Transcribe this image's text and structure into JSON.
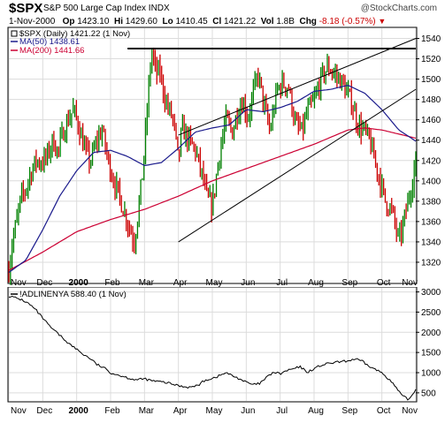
{
  "header": {
    "symbol": "$SPX",
    "name": "S&P 500 Large Cap Index INDX",
    "credit": "@StockCharts.com",
    "date": "1-Nov-2000",
    "open_label": "Op",
    "open": "1423.10",
    "high_label": "Hi",
    "high": "1429.60",
    "low_label": "Lo",
    "low": "1410.45",
    "close_label": "Cl",
    "close": "1421.22",
    "vol_label": "Vol",
    "vol": "1.8B",
    "chg_label": "Chg",
    "chg": "-8.18 (-0.57%)",
    "chg_icon": "down-triangle-icon",
    "chg_color": "#cc0000"
  },
  "chart_data": [
    {
      "type": "bar",
      "subtype": "ohlc",
      "title": "$SPX S&P 500 Large Cap Index INDX",
      "legend": [
        {
          "label": "$SPX (Daily) 1421.22 (1 Nov)",
          "color": "#000000"
        },
        {
          "label": "MA(50) 1438.61",
          "color": "#1a1a8c"
        },
        {
          "label": "MA(200) 1441.66",
          "color": "#cc0033"
        }
      ],
      "legend_placement": "top-left",
      "x_tick_labels": [
        "Nov",
        "Dec",
        "2000",
        "Feb",
        "Mar",
        "Apr",
        "May",
        "Jun",
        "Jul",
        "Aug",
        "Sep",
        "Oct",
        "Nov"
      ],
      "x_tick_positions": [
        0,
        1,
        2,
        3,
        4,
        5,
        6,
        7,
        8,
        9,
        10,
        11,
        12
      ],
      "y_ticks": [
        1320,
        1340,
        1360,
        1380,
        1400,
        1420,
        1440,
        1460,
        1480,
        1500,
        1520,
        1540
      ],
      "ylim": [
        1300,
        1550
      ],
      "xlim": [
        0,
        12
      ],
      "y_axis_side": "right",
      "grid": true,
      "close_series_t": [
        0,
        0.1,
        0.2,
        0.35,
        0.5,
        0.6,
        0.8,
        0.95,
        1.1,
        1.3,
        1.45,
        1.6,
        1.75,
        1.9,
        2.05,
        2.2,
        2.4,
        2.6,
        2.75,
        2.9,
        3.05,
        3.2,
        3.4,
        3.55,
        3.7,
        3.85,
        3.95,
        4.05,
        4.2,
        4.35,
        4.45,
        4.55,
        4.65,
        4.85,
        5.0,
        5.1,
        5.3,
        5.5,
        5.7,
        5.85,
        6.0,
        6.2,
        6.4,
        6.6,
        6.75,
        6.9,
        7.05,
        7.2,
        7.35,
        7.5,
        7.7,
        7.9,
        8.05,
        8.25,
        8.45,
        8.65,
        8.8,
        9.0,
        9.2,
        9.4,
        9.6,
        9.8,
        9.95,
        10.1,
        10.3,
        10.5,
        10.65,
        10.8,
        10.95,
        11.1,
        11.3,
        11.5,
        11.65,
        11.8,
        11.9,
        12.0
      ],
      "close_series_v": [
        1312,
        1340,
        1355,
        1382,
        1392,
        1404,
        1420,
        1418,
        1422,
        1440,
        1428,
        1448,
        1460,
        1470,
        1455,
        1435,
        1418,
        1440,
        1450,
        1424,
        1405,
        1390,
        1370,
        1355,
        1340,
        1380,
        1410,
        1455,
        1528,
        1505,
        1508,
        1490,
        1475,
        1460,
        1418,
        1452,
        1440,
        1430,
        1405,
        1382,
        1375,
        1425,
        1460,
        1448,
        1470,
        1478,
        1462,
        1485,
        1505,
        1478,
        1448,
        1488,
        1496,
        1492,
        1455,
        1448,
        1468,
        1478,
        1500,
        1512,
        1505,
        1498,
        1488,
        1478,
        1455,
        1448,
        1438,
        1418,
        1400,
        1380,
        1370,
        1340,
        1360,
        1385,
        1400,
        1421
      ],
      "ma50": {
        "t": [
          0,
          0.5,
          1.0,
          1.5,
          2.0,
          2.5,
          3.0,
          3.5,
          4.0,
          4.5,
          5.0,
          5.5,
          6.0,
          6.5,
          7.0,
          7.5,
          8.0,
          8.5,
          9.0,
          9.5,
          10.0,
          10.5,
          11.0,
          11.5,
          12.0
        ],
        "v": [
          1310,
          1322,
          1352,
          1385,
          1410,
          1428,
          1430,
          1424,
          1415,
          1418,
          1432,
          1448,
          1452,
          1455,
          1470,
          1468,
          1472,
          1478,
          1488,
          1490,
          1494,
          1486,
          1470,
          1450,
          1439
        ]
      },
      "ma200": {
        "t": [
          0,
          1.0,
          2.0,
          3.0,
          4.0,
          5.0,
          6.0,
          7.0,
          8.0,
          9.0,
          10.0,
          10.5,
          11.0,
          11.5,
          12.0
        ],
        "v": [
          1312,
          1330,
          1350,
          1362,
          1372,
          1385,
          1400,
          1412,
          1424,
          1436,
          1450,
          1452,
          1450,
          1446,
          1442
        ]
      },
      "annotations": [
        {
          "kind": "horizontal_line",
          "y": 1530,
          "t_start": 3.5,
          "t_end": 12
        },
        {
          "kind": "trend_line",
          "label": "channel upper",
          "from": [
            5.0,
            1445
          ],
          "to": [
            12.0,
            1540
          ]
        },
        {
          "kind": "trend_line",
          "label": "channel lower",
          "from": [
            5.0,
            1340
          ],
          "to": [
            12.0,
            1490
          ]
        }
      ]
    },
    {
      "type": "line",
      "title": "!ADLINENYA 588.40 (1 Nov)",
      "legend": [
        {
          "label": "!ADLINENYA 588.40 (1 Nov)",
          "color": "#000000"
        }
      ],
      "legend_placement": "top-left",
      "x_tick_labels": [
        "Nov",
        "Dec",
        "2000",
        "Feb",
        "Mar",
        "Apr",
        "May",
        "Jun",
        "Jul",
        "Aug",
        "Sep",
        "Oct",
        "Nov"
      ],
      "x_tick_positions": [
        0,
        1,
        2,
        3,
        4,
        5,
        6,
        7,
        8,
        9,
        10,
        11,
        12
      ],
      "y_ticks": [
        500,
        1000,
        1500,
        2000,
        2500,
        3000
      ],
      "ylim": [
        300,
        3100
      ],
      "xlim": [
        0,
        12
      ],
      "y_axis_side": "right",
      "grid": true,
      "x": [
        0,
        0.2,
        0.4,
        0.6,
        0.8,
        1.0,
        1.2,
        1.4,
        1.6,
        1.8,
        2.0,
        2.2,
        2.4,
        2.6,
        2.8,
        3.0,
        3.2,
        3.4,
        3.6,
        3.8,
        4.0,
        4.2,
        4.4,
        4.6,
        4.8,
        5.0,
        5.2,
        5.4,
        5.6,
        5.8,
        6.0,
        6.2,
        6.4,
        6.6,
        6.8,
        7.0,
        7.2,
        7.4,
        7.6,
        7.8,
        8.0,
        8.2,
        8.4,
        8.6,
        8.8,
        9.0,
        9.2,
        9.4,
        9.6,
        9.8,
        10.0,
        10.2,
        10.4,
        10.6,
        10.8,
        11.0,
        11.2,
        11.4,
        11.6,
        11.8,
        12.0
      ],
      "y": [
        2900,
        2850,
        2800,
        2700,
        2550,
        2350,
        2150,
        2000,
        1850,
        1700,
        1580,
        1450,
        1350,
        1200,
        1120,
        1000,
        950,
        900,
        850,
        820,
        850,
        800,
        780,
        760,
        720,
        680,
        650,
        640,
        700,
        820,
        860,
        920,
        1000,
        920,
        850,
        760,
        700,
        730,
        880,
        1010,
        970,
        1050,
        1100,
        1140,
        1010,
        1100,
        1180,
        1220,
        1250,
        1270,
        1290,
        1340,
        1290,
        1170,
        1080,
        1000,
        850,
        650,
        420,
        330,
        588
      ]
    }
  ]
}
